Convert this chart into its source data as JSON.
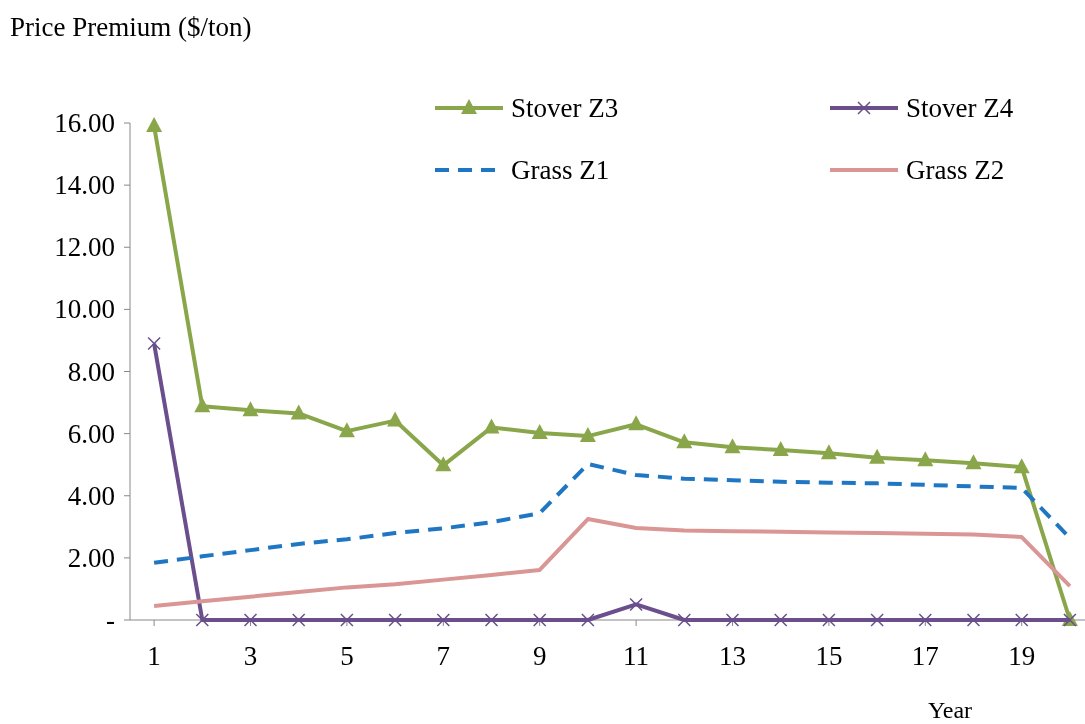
{
  "chart_data": {
    "type": "line",
    "ylabel": "Price Premium ($/ton)",
    "xlabel": "Year",
    "x": [
      1,
      2,
      3,
      4,
      5,
      6,
      7,
      8,
      9,
      10,
      11,
      12,
      13,
      14,
      15,
      16,
      17,
      18,
      19,
      20
    ],
    "xlim": [
      0.5,
      20.5
    ],
    "xticks": [
      1,
      3,
      5,
      7,
      9,
      11,
      13,
      15,
      17,
      19
    ],
    "ylim": [
      0,
      16
    ],
    "yticks": [
      {
        "value": 0,
        "label": "-"
      },
      {
        "value": 2,
        "label": "2.00"
      },
      {
        "value": 4,
        "label": "4.00"
      },
      {
        "value": 6,
        "label": "6.00"
      },
      {
        "value": 8,
        "label": "8.00"
      },
      {
        "value": 10,
        "label": "10.00"
      },
      {
        "value": 12,
        "label": "12.00"
      },
      {
        "value": 14,
        "label": "14.00"
      },
      {
        "value": 16,
        "label": "16.00"
      }
    ],
    "legend": "top right",
    "grid": false,
    "series": [
      {
        "name": "Stover Z3",
        "color": "#8aa64a",
        "marker": "triangle",
        "line_style": "solid",
        "values": [
          15.9,
          6.88,
          6.75,
          6.65,
          6.08,
          6.42,
          4.98,
          6.2,
          6.02,
          5.92,
          6.3,
          5.72,
          5.56,
          5.47,
          5.37,
          5.22,
          5.14,
          5.05,
          4.92,
          0
        ]
      },
      {
        "name": "Stover Z4",
        "color": "#6a4f8c",
        "marker": "cross",
        "line_style": "solid",
        "values": [
          8.9,
          0,
          0,
          0,
          0,
          0,
          0,
          0,
          0,
          0,
          0.5,
          0,
          0,
          0,
          0,
          0,
          0,
          0,
          0,
          0
        ]
      },
      {
        "name": "Grass Z1",
        "color": "#1f77c4",
        "marker": "none",
        "line_style": "dashed",
        "values": [
          1.84,
          2.05,
          2.25,
          2.45,
          2.6,
          2.8,
          2.95,
          3.15,
          3.44,
          5.02,
          4.67,
          4.55,
          4.5,
          4.45,
          4.42,
          4.4,
          4.35,
          4.3,
          4.25,
          2.64
        ]
      },
      {
        "name": "Grass Z2",
        "color": "#d99694",
        "marker": "none",
        "line_style": "solid",
        "values": [
          0.45,
          0.6,
          0.75,
          0.9,
          1.05,
          1.15,
          1.3,
          1.45,
          1.61,
          3.25,
          2.96,
          2.88,
          2.86,
          2.84,
          2.82,
          2.8,
          2.78,
          2.75,
          2.67,
          1.09
        ]
      }
    ]
  }
}
